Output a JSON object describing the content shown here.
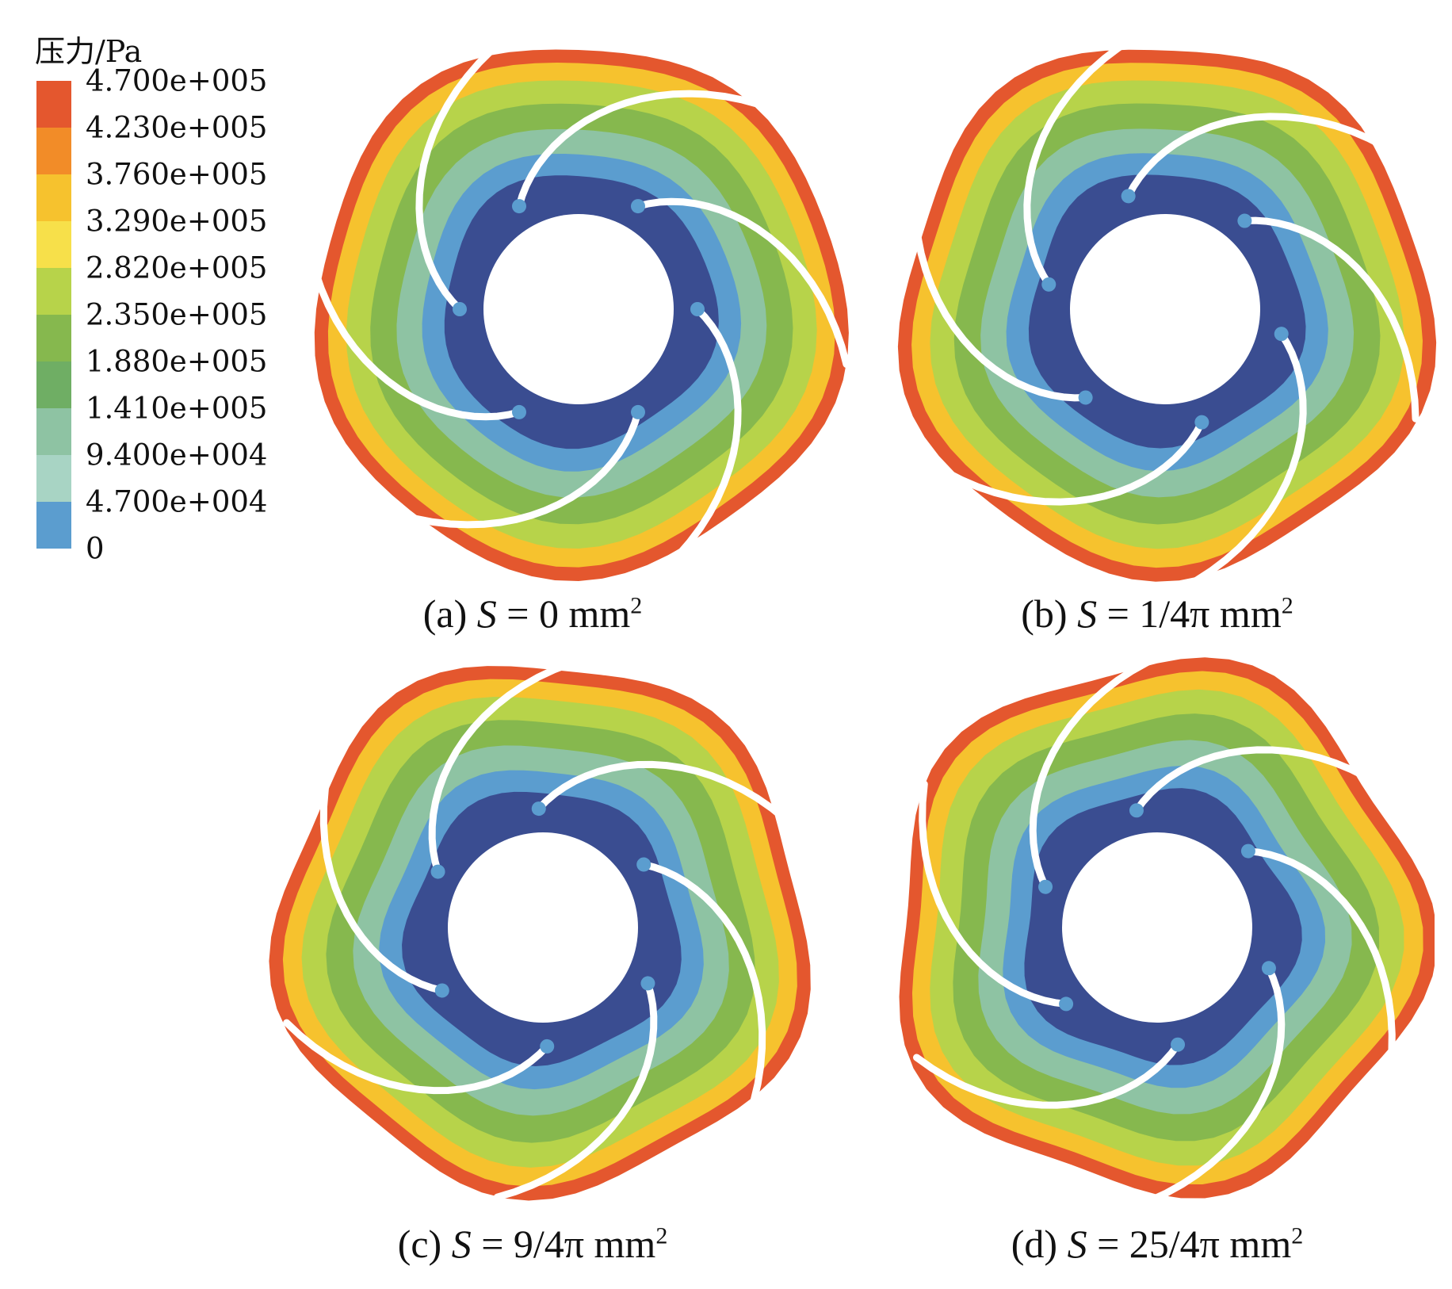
{
  "legend": {
    "title": "压力/Pa",
    "ticks": [
      "4.700e+005",
      "4.230e+005",
      "3.760e+005",
      "3.290e+005",
      "2.820e+005",
      "2.350e+005",
      "1.880e+005",
      "1.410e+005",
      "9.400e+004",
      "4.700e+004",
      "0"
    ],
    "colors": [
      "#e4572e",
      "#f28c28",
      "#f6c22e",
      "#f7e04a",
      "#b7d34a",
      "#86b84e",
      "#6fae64",
      "#8ec3a3",
      "#a8d4c4",
      "#5b9dcf",
      "#3a4d91"
    ]
  },
  "panels": [
    {
      "label": "(a) ",
      "var": "S",
      "expr": " = 0 mm",
      "exp": "2"
    },
    {
      "label": "(b) ",
      "var": "S",
      "expr": " = 1/4π mm",
      "exp": "2"
    },
    {
      "label": "(c) ",
      "var": "S",
      "expr": " = 9/4π mm",
      "exp": "2"
    },
    {
      "label": "(d) ",
      "var": "S",
      "expr": " = 25/4π mm",
      "exp": "2"
    }
  ],
  "field_colors": {
    "outer": "#e4572e",
    "outer_mid": "#f6c22e",
    "mid": "#b7d34a",
    "green": "#86b84e",
    "light": "#8ec3a3",
    "blue": "#5b9dcf",
    "inner": "#3a4d91",
    "blade": "#ffffff"
  }
}
